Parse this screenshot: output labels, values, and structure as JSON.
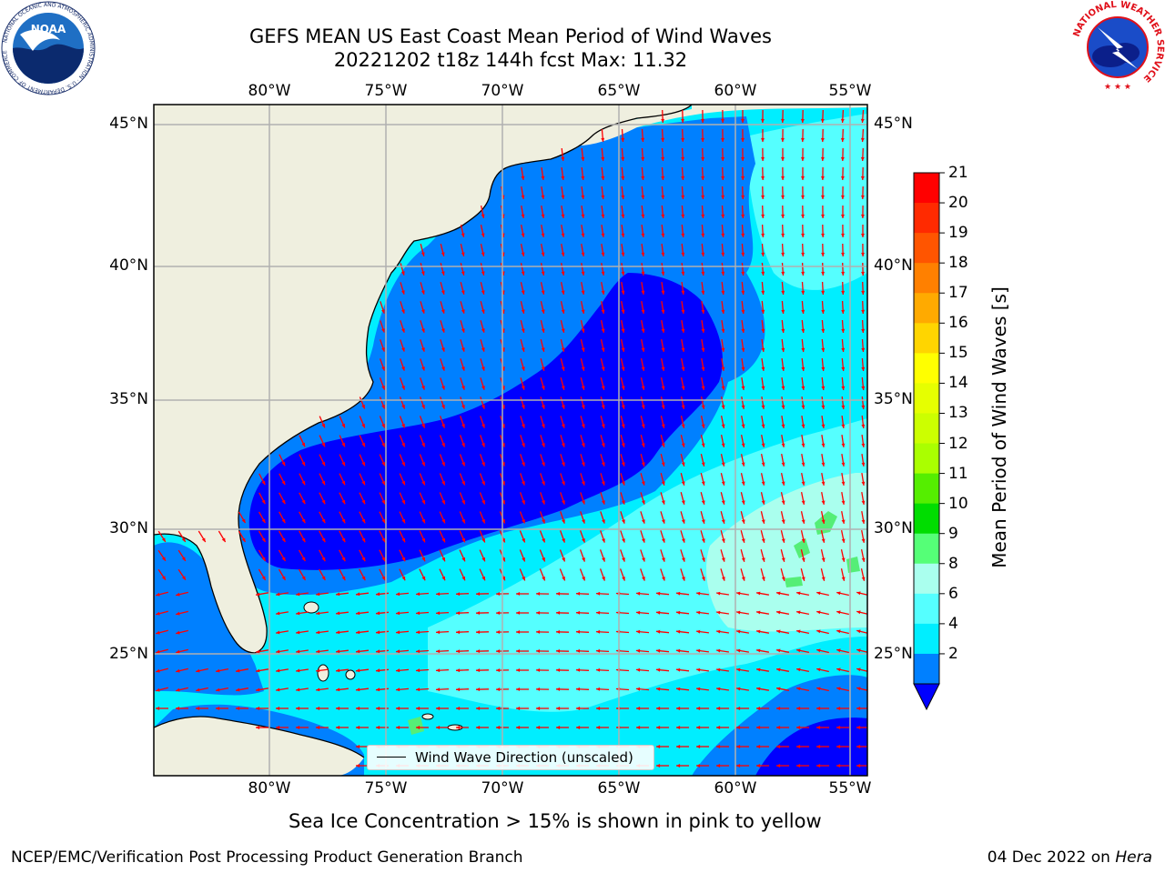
{
  "titles": {
    "line1": "GEFS MEAN US East Coast Mean Period of Wind Waves",
    "line2": "20221202 t18z 144h fcst   Max: 11.32"
  },
  "lon_ticks": [
    "80°W",
    "75°W",
    "70°W",
    "65°W",
    "60°W",
    "55°W"
  ],
  "lat_ticks": [
    "45°N",
    "40°N",
    "35°N",
    "30°N",
    "25°N"
  ],
  "colorbar": {
    "title": "Mean Period of Wind Waves [s]",
    "ticks": [
      "21",
      "20",
      "19",
      "18",
      "17",
      "16",
      "15",
      "14",
      "13",
      "12",
      "11",
      "10",
      "9",
      "8",
      "6",
      "4",
      "2"
    ],
    "colors": [
      "#ff0000",
      "#ff2a00",
      "#ff5500",
      "#ff8000",
      "#ffaa00",
      "#ffd500",
      "#ffff00",
      "#e6ff00",
      "#ccff00",
      "#aaff00",
      "#55ee00",
      "#00dd00",
      "#55ff77",
      "#aaffee",
      "#55ffff",
      "#00eeff",
      "#0080ff"
    ],
    "under_color": "#0000ff"
  },
  "map_colors": {
    "land": "#efefdf",
    "period_2_4": "#0080ff",
    "period_lt_2": "#0000ff",
    "period_4_6": "#00eeff",
    "period_6_8": "#55ffff",
    "period_8_9": "#aaffee",
    "period_9_10": "#55ee77",
    "arrow": "#ff0000",
    "grid": "#b0b0b0"
  },
  "legend": {
    "label": "Wind Wave Direction (unscaled)"
  },
  "sea_ice_note": "Sea Ice Concentration > 15% is shown in pink to yellow",
  "footer": {
    "left": "NCEP/EMC/Verification Post Processing Product Generation Branch",
    "date": "04 Dec 2022 on ",
    "machine": "Hera"
  },
  "logos": {
    "noaa": "NOAA",
    "nws_ring": "NATIONAL WEATHER SERVICE",
    "noaa_ring": "NATIONAL OCEANIC AND ATMOSPHERIC ADMINISTRATION · U.S. DEPARTMENT OF COMMERCE"
  }
}
